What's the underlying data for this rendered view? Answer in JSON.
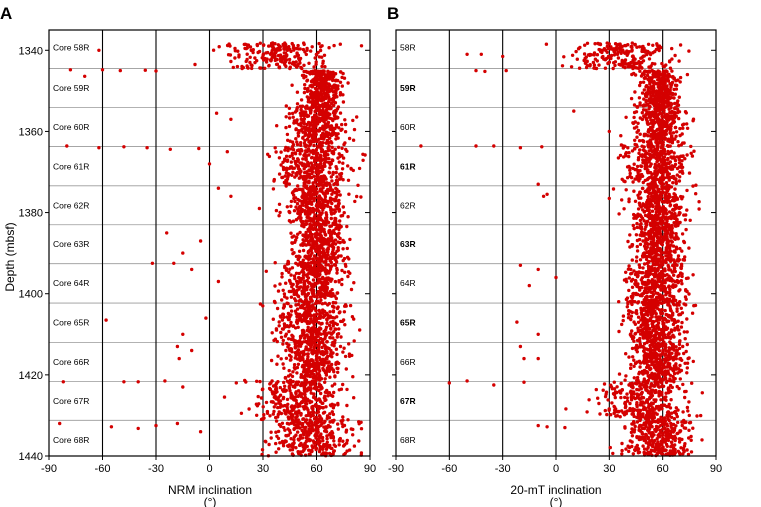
{
  "figure": {
    "colors": {
      "points": "#d40000",
      "frame": "#000000",
      "core_boundary": "#999999"
    }
  },
  "chart_data": [
    {
      "type": "scatter",
      "panel_label": "A",
      "xlabel": "NRM inclination",
      "xunit": "(°)",
      "ylabel": "Depth (mbsf)",
      "xlim": [
        -90,
        90
      ],
      "ylim": [
        1440,
        1335
      ],
      "x_ticks": [
        -90,
        -60,
        -30,
        0,
        30,
        60,
        90
      ],
      "y_ticks": [
        1340,
        1360,
        1380,
        1400,
        1420,
        1440
      ],
      "vertical_reference_lines": [
        -60,
        -30,
        0,
        30,
        60
      ],
      "core_boundaries": [
        1344.5,
        1354.1,
        1363.7,
        1373.4,
        1383.0,
        1392.6,
        1402.3,
        1412.0,
        1421.6,
        1431.2
      ],
      "core_labels": [
        {
          "label": "Core 58R",
          "depth": 1339.3
        },
        {
          "label": "Core 59R",
          "depth": 1349.3
        },
        {
          "label": "Core 60R",
          "depth": 1358.9
        },
        {
          "label": "Core 61R",
          "depth": 1368.6
        },
        {
          "label": "Core 62R",
          "depth": 1378.2
        },
        {
          "label": "Core 63R",
          "depth": 1387.8
        },
        {
          "label": "Core 64R",
          "depth": 1397.4
        },
        {
          "label": "Core 65R",
          "depth": 1407.1
        },
        {
          "label": "Core 66R",
          "depth": 1416.8
        },
        {
          "label": "Core 67R",
          "depth": 1426.4
        },
        {
          "label": "Core 68R",
          "depth": 1436.0
        }
      ],
      "cores": [
        {
          "top": 1338.2,
          "bottom": 1344.5,
          "mean": 40,
          "spread": 25,
          "outliers": [
            [
              -62,
              1340.0
            ],
            [
              -78,
              1344.8
            ],
            [
              -60,
              1344.8
            ],
            [
              -50,
              1345.0
            ],
            [
              -36,
              1344.9
            ],
            [
              -70,
              1346.4
            ],
            [
              -30,
              1345.1
            ]
          ]
        },
        {
          "top": 1345.0,
          "bottom": 1354.0,
          "mean": 63,
          "spread": 9,
          "outliers": []
        },
        {
          "top": 1353.6,
          "bottom": 1363.0,
          "mean": 60,
          "spread": 14,
          "outliers": [
            [
              4,
              1355.5
            ],
            [
              12,
              1357.0
            ]
          ]
        },
        {
          "top": 1363.2,
          "bottom": 1373.0,
          "mean": 58,
          "spread": 18,
          "outliers": [
            [
              -80,
              1363.6
            ],
            [
              -62,
              1364.0
            ],
            [
              -48,
              1363.8
            ],
            [
              -35,
              1364.0
            ],
            [
              -22,
              1364.4
            ],
            [
              -6,
              1364.2
            ],
            [
              10,
              1365.0
            ],
            [
              0,
              1368.0
            ]
          ]
        },
        {
          "top": 1373.0,
          "bottom": 1382.8,
          "mean": 60,
          "spread": 16,
          "outliers": [
            [
              12,
              1376.0
            ],
            [
              5,
              1374.0
            ],
            [
              28,
              1379.0
            ]
          ]
        },
        {
          "top": 1382.8,
          "bottom": 1392.3,
          "mean": 62,
          "spread": 13,
          "outliers": [
            [
              -24,
              1385.0
            ],
            [
              -15,
              1390.0
            ],
            [
              -5,
              1387.0
            ]
          ]
        },
        {
          "top": 1392.2,
          "bottom": 1402.0,
          "mean": 58,
          "spread": 16,
          "outliers": [
            [
              -32,
              1392.5
            ],
            [
              -20,
              1392.5
            ],
            [
              -10,
              1394.0
            ],
            [
              5,
              1397.0
            ]
          ]
        },
        {
          "top": 1402.0,
          "bottom": 1411.8,
          "mean": 57,
          "spread": 17,
          "outliers": [
            [
              -58,
              1406.5
            ],
            [
              -15,
              1410.0
            ],
            [
              -2,
              1406.0
            ]
          ]
        },
        {
          "top": 1411.8,
          "bottom": 1421.2,
          "mean": 58,
          "spread": 16,
          "outliers": [
            [
              -18,
              1413.0
            ],
            [
              -17,
              1416.0
            ],
            [
              -10,
              1414.0
            ]
          ]
        },
        {
          "top": 1421.3,
          "bottom": 1431.0,
          "mean": 50,
          "spread": 24,
          "outliers": [
            [
              -82,
              1421.7
            ],
            [
              -48,
              1421.7
            ],
            [
              -40,
              1421.7
            ],
            [
              -25,
              1421.5
            ],
            [
              -15,
              1423.0
            ]
          ]
        },
        {
          "top": 1431.0,
          "bottom": 1440.0,
          "mean": 58,
          "spread": 20,
          "outliers": [
            [
              -84,
              1432.0
            ],
            [
              -55,
              1432.8
            ],
            [
              -40,
              1433.2
            ],
            [
              -30,
              1432.5
            ],
            [
              -18,
              1432.0
            ],
            [
              -5,
              1434.0
            ]
          ]
        }
      ]
    },
    {
      "type": "scatter",
      "panel_label": "B",
      "xlabel": "20-mT inclination",
      "xunit": "(°)",
      "ylabel": "",
      "xlim": [
        -90,
        90
      ],
      "ylim": [
        1440,
        1335
      ],
      "x_ticks": [
        -90,
        -60,
        -30,
        0,
        30,
        60,
        90
      ],
      "y_ticks": [
        1340,
        1360,
        1380,
        1400,
        1420,
        1440
      ],
      "vertical_reference_lines": [
        -60,
        -30,
        0,
        30,
        60
      ],
      "core_boundaries": [
        1344.5,
        1354.1,
        1363.7,
        1373.4,
        1383.0,
        1392.6,
        1402.3,
        1412.0,
        1421.6,
        1431.2
      ],
      "core_labels": [
        {
          "label": "58R",
          "depth": 1339.3,
          "bold": false
        },
        {
          "label": "59R",
          "depth": 1349.3,
          "bold": true
        },
        {
          "label": "60R",
          "depth": 1358.9,
          "bold": false
        },
        {
          "label": "61R",
          "depth": 1368.6,
          "bold": true
        },
        {
          "label": "62R",
          "depth": 1378.2,
          "bold": false
        },
        {
          "label": "63R",
          "depth": 1387.8,
          "bold": true
        },
        {
          "label": "64R",
          "depth": 1397.4,
          "bold": false
        },
        {
          "label": "65R",
          "depth": 1407.1,
          "bold": true
        },
        {
          "label": "66R",
          "depth": 1416.8,
          "bold": false
        },
        {
          "label": "67R",
          "depth": 1426.4,
          "bold": true
        },
        {
          "label": "68R",
          "depth": 1436.0,
          "bold": false
        }
      ],
      "cores": [
        {
          "top": 1338.2,
          "bottom": 1344.5,
          "mean": 38,
          "spread": 26,
          "outliers": [
            [
              -50,
              1341.0
            ],
            [
              -42,
              1341.0
            ],
            [
              -30,
              1341.5
            ],
            [
              -45,
              1345.0
            ],
            [
              -40,
              1345.2
            ],
            [
              -28,
              1345.0
            ]
          ]
        },
        {
          "top": 1345.0,
          "bottom": 1354.0,
          "mean": 58,
          "spread": 10,
          "outliers": []
        },
        {
          "top": 1353.6,
          "bottom": 1363.0,
          "mean": 58,
          "spread": 12,
          "outliers": [
            [
              10,
              1355.0
            ],
            [
              30,
              1360.0
            ]
          ]
        },
        {
          "top": 1363.2,
          "bottom": 1373.0,
          "mean": 57,
          "spread": 15,
          "outliers": [
            [
              -76,
              1363.6
            ],
            [
              -45,
              1363.6
            ],
            [
              -35,
              1363.6
            ],
            [
              -20,
              1364.0
            ],
            [
              -8,
              1363.8
            ],
            [
              -10,
              1373.0
            ],
            [
              -5,
              1375.5
            ]
          ]
        },
        {
          "top": 1373.0,
          "bottom": 1382.8,
          "mean": 58,
          "spread": 13,
          "outliers": [
            [
              -7,
              1376.0
            ],
            [
              30,
              1376.5
            ]
          ]
        },
        {
          "top": 1382.8,
          "bottom": 1392.3,
          "mean": 58,
          "spread": 12,
          "outliers": []
        },
        {
          "top": 1392.2,
          "bottom": 1402.0,
          "mean": 56,
          "spread": 15,
          "outliers": [
            [
              -20,
              1393.0
            ],
            [
              -10,
              1394.0
            ],
            [
              -15,
              1398.0
            ],
            [
              0,
              1396.0
            ]
          ]
        },
        {
          "top": 1402.0,
          "bottom": 1411.8,
          "mean": 56,
          "spread": 15,
          "outliers": [
            [
              -22,
              1407.0
            ],
            [
              -10,
              1410.0
            ]
          ]
        },
        {
          "top": 1411.8,
          "bottom": 1421.2,
          "mean": 58,
          "spread": 14,
          "outliers": [
            [
              -20,
              1413.0
            ],
            [
              -18,
              1416.0
            ],
            [
              -10,
              1416.0
            ]
          ]
        },
        {
          "top": 1421.3,
          "bottom": 1431.0,
          "mean": 50,
          "spread": 22,
          "outliers": [
            [
              -60,
              1422.0
            ],
            [
              -50,
              1421.5
            ],
            [
              -35,
              1422.5
            ],
            [
              -18,
              1421.8
            ]
          ]
        },
        {
          "top": 1431.0,
          "bottom": 1440.0,
          "mean": 57,
          "spread": 17,
          "outliers": [
            [
              -10,
              1432.5
            ],
            [
              -5,
              1432.8
            ],
            [
              5,
              1433.0
            ]
          ]
        }
      ]
    }
  ]
}
